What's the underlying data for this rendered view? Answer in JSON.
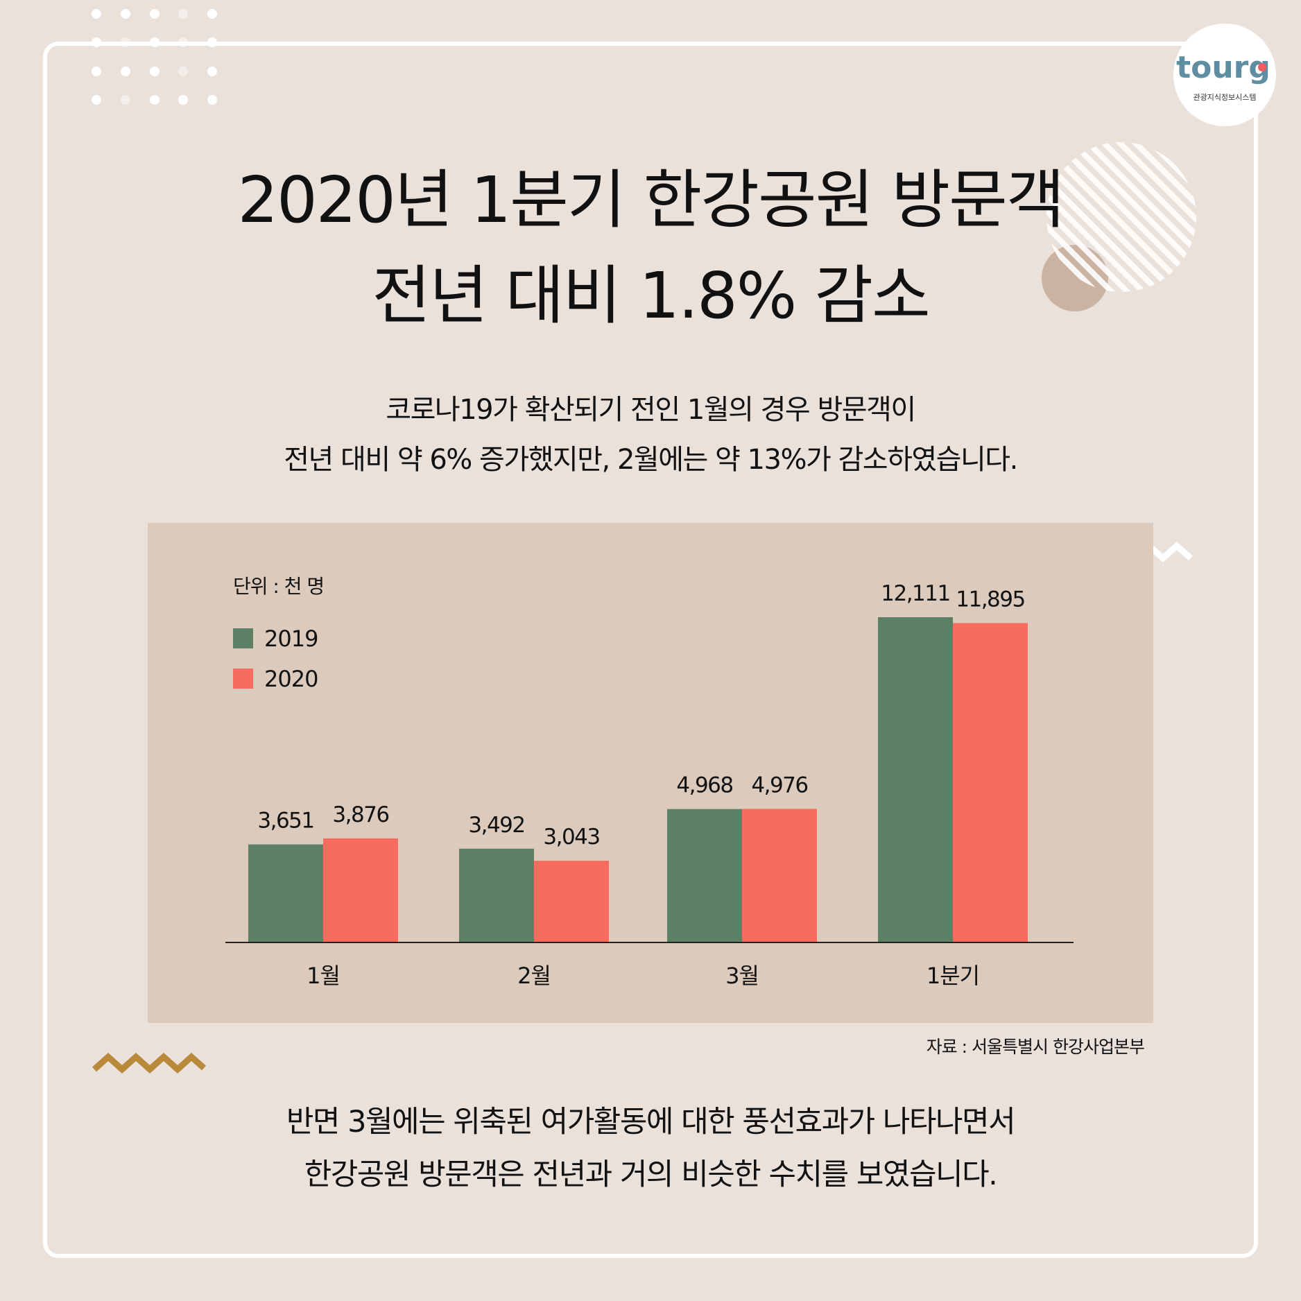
{
  "header": {
    "title_line1": "2020년 1분기 한강공원 방문객",
    "title_line2": "전년 대비 1.8% 감소"
  },
  "logo": {
    "text": "tourgo",
    "subtitle": "관광지식정보시스템"
  },
  "description": {
    "line1": "코로나19가 확산되기 전인 1월의 경우 방문객이",
    "line2": "전년 대비 약 6% 증가했지만, 2월에는 약 13%가 감소하였습니다."
  },
  "chart_data": {
    "type": "bar",
    "unit_label": "단위 : 천 명",
    "categories": [
      "1월",
      "2월",
      "3월",
      "1분기"
    ],
    "series": [
      {
        "name": "2019",
        "color": "#5d8065",
        "values": [
          3651,
          3492,
          4968,
          12111
        ],
        "labels": [
          "3,651",
          "3,492",
          "4,968",
          "12,111"
        ]
      },
      {
        "name": "2020",
        "color": "#f86c60",
        "values": [
          3876,
          3043,
          4976,
          11895
        ],
        "labels": [
          "3,876",
          "3,043",
          "4,976",
          "11,895"
        ]
      }
    ],
    "legend": "top-left",
    "grid": false
  },
  "source": "자료 : 서울특별시 한강사업본부",
  "footer": {
    "line1": "반면 3월에는 위축된 여가활동에 대한 풍선효과가 나타나면서",
    "line2": "한강공원 방문객은 전년과 거의 비슷한 수치를 보였습니다."
  }
}
